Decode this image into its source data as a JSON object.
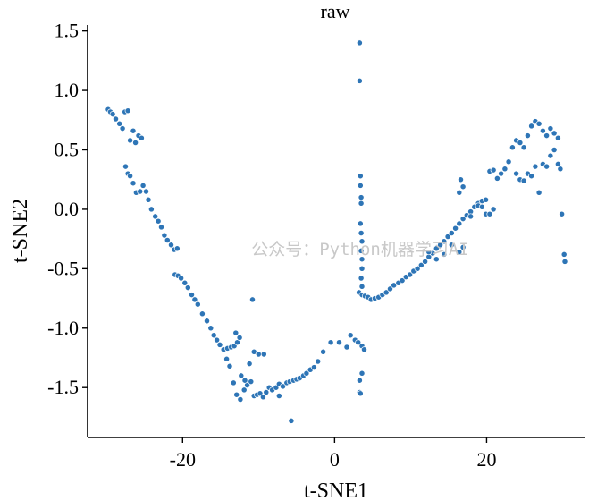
{
  "chart_data": {
    "type": "scatter",
    "title": "raw",
    "xlabel": "t-SNE1",
    "ylabel": "t-SNE2",
    "xlim": [
      -32.5,
      33
    ],
    "ylim": [
      -1.92,
      1.55
    ],
    "xticks": [
      -20,
      0,
      20
    ],
    "xtick_labels": [
      "-20",
      "0",
      "20"
    ],
    "yticks": [
      -1.5,
      -1.0,
      -0.5,
      0.0,
      0.5,
      1.0,
      1.5
    ],
    "ytick_labels": [
      "-1.5",
      "-1.0",
      "-0.5",
      "0.0",
      "0.5",
      "1.0",
      "1.5"
    ],
    "grid": false,
    "legend": "none",
    "point_color": "#2e75b6",
    "watermark": "公众号：Python机器学习AI",
    "points": [
      [
        -29.8,
        0.84
      ],
      [
        -29.5,
        0.82
      ],
      [
        -29.2,
        0.8
      ],
      [
        -28.8,
        0.76
      ],
      [
        -28.3,
        0.72
      ],
      [
        -27.9,
        0.68
      ],
      [
        -27.6,
        0.82
      ],
      [
        -27.2,
        0.83
      ],
      [
        -26.9,
        0.58
      ],
      [
        -26.5,
        0.66
      ],
      [
        -26.2,
        0.56
      ],
      [
        -25.8,
        0.62
      ],
      [
        -25.4,
        0.6
      ],
      [
        -27.5,
        0.36
      ],
      [
        -27.2,
        0.3
      ],
      [
        -26.9,
        0.28
      ],
      [
        -26.5,
        0.22
      ],
      [
        -26.1,
        0.14
      ],
      [
        -25.6,
        0.15
      ],
      [
        -25.2,
        0.2
      ],
      [
        -24.8,
        0.15
      ],
      [
        -24.5,
        0.08
      ],
      [
        -24.1,
        0.0
      ],
      [
        -23.6,
        -0.06
      ],
      [
        -23.2,
        -0.1
      ],
      [
        -22.8,
        -0.15
      ],
      [
        -22.4,
        -0.22
      ],
      [
        -22.0,
        -0.26
      ],
      [
        -21.5,
        -0.3
      ],
      [
        -21.1,
        -0.34
      ],
      [
        -20.7,
        -0.33
      ],
      [
        -21.0,
        -0.55
      ],
      [
        -20.6,
        -0.56
      ],
      [
        -20.2,
        -0.58
      ],
      [
        -19.7,
        -0.62
      ],
      [
        -19.3,
        -0.66
      ],
      [
        -18.8,
        -0.72
      ],
      [
        -18.4,
        -0.76
      ],
      [
        -18.0,
        -0.8
      ],
      [
        -17.4,
        -0.88
      ],
      [
        -16.8,
        -0.94
      ],
      [
        -16.3,
        -1.0
      ],
      [
        -15.9,
        -1.06
      ],
      [
        -15.5,
        -1.1
      ],
      [
        -15.1,
        -1.14
      ],
      [
        -14.6,
        -1.18
      ],
      [
        -14.1,
        -1.17
      ],
      [
        -13.6,
        -1.16
      ],
      [
        -13.2,
        -1.15
      ],
      [
        -12.8,
        -1.12
      ],
      [
        -13.0,
        -1.04
      ],
      [
        -12.5,
        -1.08
      ],
      [
        -14.2,
        -1.26
      ],
      [
        -13.8,
        -1.32
      ],
      [
        -13.3,
        -1.46
      ],
      [
        -12.9,
        -1.56
      ],
      [
        -12.4,
        -1.6
      ],
      [
        -11.9,
        -1.52
      ],
      [
        -11.5,
        -1.48
      ],
      [
        -11.0,
        -1.45
      ],
      [
        -10.6,
        -1.57
      ],
      [
        -10.2,
        -1.56
      ],
      [
        -9.8,
        -1.55
      ],
      [
        -9.4,
        -1.58
      ],
      [
        -9.0,
        -1.54
      ],
      [
        -8.6,
        -1.5
      ],
      [
        -8.2,
        -1.52
      ],
      [
        -7.7,
        -1.5
      ],
      [
        -7.3,
        -1.47
      ],
      [
        -6.8,
        -1.49
      ],
      [
        -6.3,
        -1.46
      ],
      [
        -5.9,
        -1.45
      ],
      [
        -5.4,
        -1.44
      ],
      [
        -5.0,
        -1.43
      ],
      [
        -4.6,
        -1.42
      ],
      [
        -4.1,
        -1.4
      ],
      [
        -3.7,
        -1.38
      ],
      [
        -3.2,
        -1.35
      ],
      [
        -2.7,
        -1.33
      ],
      [
        -2.2,
        -1.28
      ],
      [
        -12.3,
        -1.4
      ],
      [
        -11.8,
        -1.44
      ],
      [
        -11.2,
        -1.3
      ],
      [
        -10.6,
        -1.2
      ],
      [
        -10.0,
        -1.22
      ],
      [
        -9.3,
        -1.22
      ],
      [
        -10.8,
        -0.76
      ],
      [
        -7.3,
        -1.57
      ],
      [
        -5.7,
        -1.78
      ],
      [
        -1.5,
        -1.2
      ],
      [
        -0.5,
        -1.12
      ],
      [
        0.6,
        -1.12
      ],
      [
        1.6,
        -1.16
      ],
      [
        2.1,
        -1.06
      ],
      [
        2.7,
        -1.1
      ],
      [
        3.1,
        -1.12
      ],
      [
        3.6,
        -1.15
      ],
      [
        3.9,
        -1.18
      ],
      [
        3.3,
        -1.44
      ],
      [
        3.6,
        -1.38
      ],
      [
        3.3,
        -1.54
      ],
      [
        3.4,
        -1.55
      ],
      [
        3.3,
        1.4
      ],
      [
        3.3,
        1.08
      ],
      [
        3.4,
        0.28
      ],
      [
        3.4,
        0.2
      ],
      [
        3.5,
        0.1
      ],
      [
        3.5,
        0.05
      ],
      [
        3.4,
        -0.12
      ],
      [
        3.5,
        -0.2
      ],
      [
        3.6,
        -0.27
      ],
      [
        3.5,
        -0.35
      ],
      [
        3.6,
        -0.42
      ],
      [
        3.6,
        -0.5
      ],
      [
        3.5,
        -0.58
      ],
      [
        3.6,
        -0.65
      ],
      [
        3.2,
        -0.7
      ],
      [
        3.6,
        -0.72
      ],
      [
        4.0,
        -0.73
      ],
      [
        4.4,
        -0.74
      ],
      [
        4.8,
        -0.76
      ],
      [
        5.3,
        -0.75
      ],
      [
        5.8,
        -0.74
      ],
      [
        6.3,
        -0.72
      ],
      [
        6.8,
        -0.7
      ],
      [
        7.3,
        -0.67
      ],
      [
        7.8,
        -0.64
      ],
      [
        8.4,
        -0.62
      ],
      [
        8.9,
        -0.6
      ],
      [
        9.4,
        -0.57
      ],
      [
        9.9,
        -0.55
      ],
      [
        10.4,
        -0.52
      ],
      [
        10.9,
        -0.5
      ],
      [
        11.4,
        -0.47
      ],
      [
        11.9,
        -0.44
      ],
      [
        12.4,
        -0.4
      ],
      [
        12.9,
        -0.37
      ],
      [
        13.4,
        -0.33
      ],
      [
        13.9,
        -0.3
      ],
      [
        14.4,
        -0.27
      ],
      [
        14.9,
        -0.23
      ],
      [
        15.4,
        -0.2
      ],
      [
        15.9,
        -0.16
      ],
      [
        16.4,
        -0.12
      ],
      [
        16.9,
        -0.08
      ],
      [
        17.4,
        -0.05
      ],
      [
        17.9,
        -0.02
      ],
      [
        18.4,
        0.02
      ],
      [
        18.9,
        0.05
      ],
      [
        19.4,
        0.07
      ],
      [
        19.9,
        0.08
      ],
      [
        16.4,
        0.14
      ],
      [
        16.9,
        0.19
      ],
      [
        16.6,
        0.25
      ],
      [
        12.4,
        -0.36
      ],
      [
        13.4,
        -0.42
      ],
      [
        14.4,
        -0.38
      ],
      [
        15.4,
        -0.3
      ],
      [
        16.4,
        -0.36
      ],
      [
        16.9,
        -0.32
      ],
      [
        17.9,
        -0.06
      ],
      [
        18.9,
        0.03
      ],
      [
        19.9,
        -0.04
      ],
      [
        19.4,
        0.02
      ],
      [
        20.4,
        -0.04
      ],
      [
        20.9,
        0.0
      ],
      [
        20.4,
        0.32
      ],
      [
        20.9,
        0.33
      ],
      [
        21.4,
        0.26
      ],
      [
        21.9,
        0.3
      ],
      [
        22.4,
        0.34
      ],
      [
        22.9,
        0.4
      ],
      [
        23.4,
        0.52
      ],
      [
        23.9,
        0.58
      ],
      [
        24.4,
        0.56
      ],
      [
        24.9,
        0.52
      ],
      [
        25.4,
        0.62
      ],
      [
        25.9,
        0.7
      ],
      [
        26.4,
        0.74
      ],
      [
        26.9,
        0.72
      ],
      [
        27.4,
        0.66
      ],
      [
        27.9,
        0.62
      ],
      [
        28.4,
        0.68
      ],
      [
        28.9,
        0.64
      ],
      [
        29.4,
        0.6
      ],
      [
        23.9,
        0.3
      ],
      [
        24.4,
        0.25
      ],
      [
        24.9,
        0.24
      ],
      [
        25.4,
        0.3
      ],
      [
        25.9,
        0.28
      ],
      [
        26.4,
        0.36
      ],
      [
        26.9,
        0.14
      ],
      [
        27.4,
        0.38
      ],
      [
        27.9,
        0.36
      ],
      [
        28.4,
        0.45
      ],
      [
        28.9,
        0.5
      ],
      [
        29.4,
        0.38
      ],
      [
        29.7,
        0.34
      ],
      [
        29.9,
        -0.04
      ],
      [
        30.2,
        -0.38
      ],
      [
        30.3,
        -0.44
      ]
    ]
  }
}
